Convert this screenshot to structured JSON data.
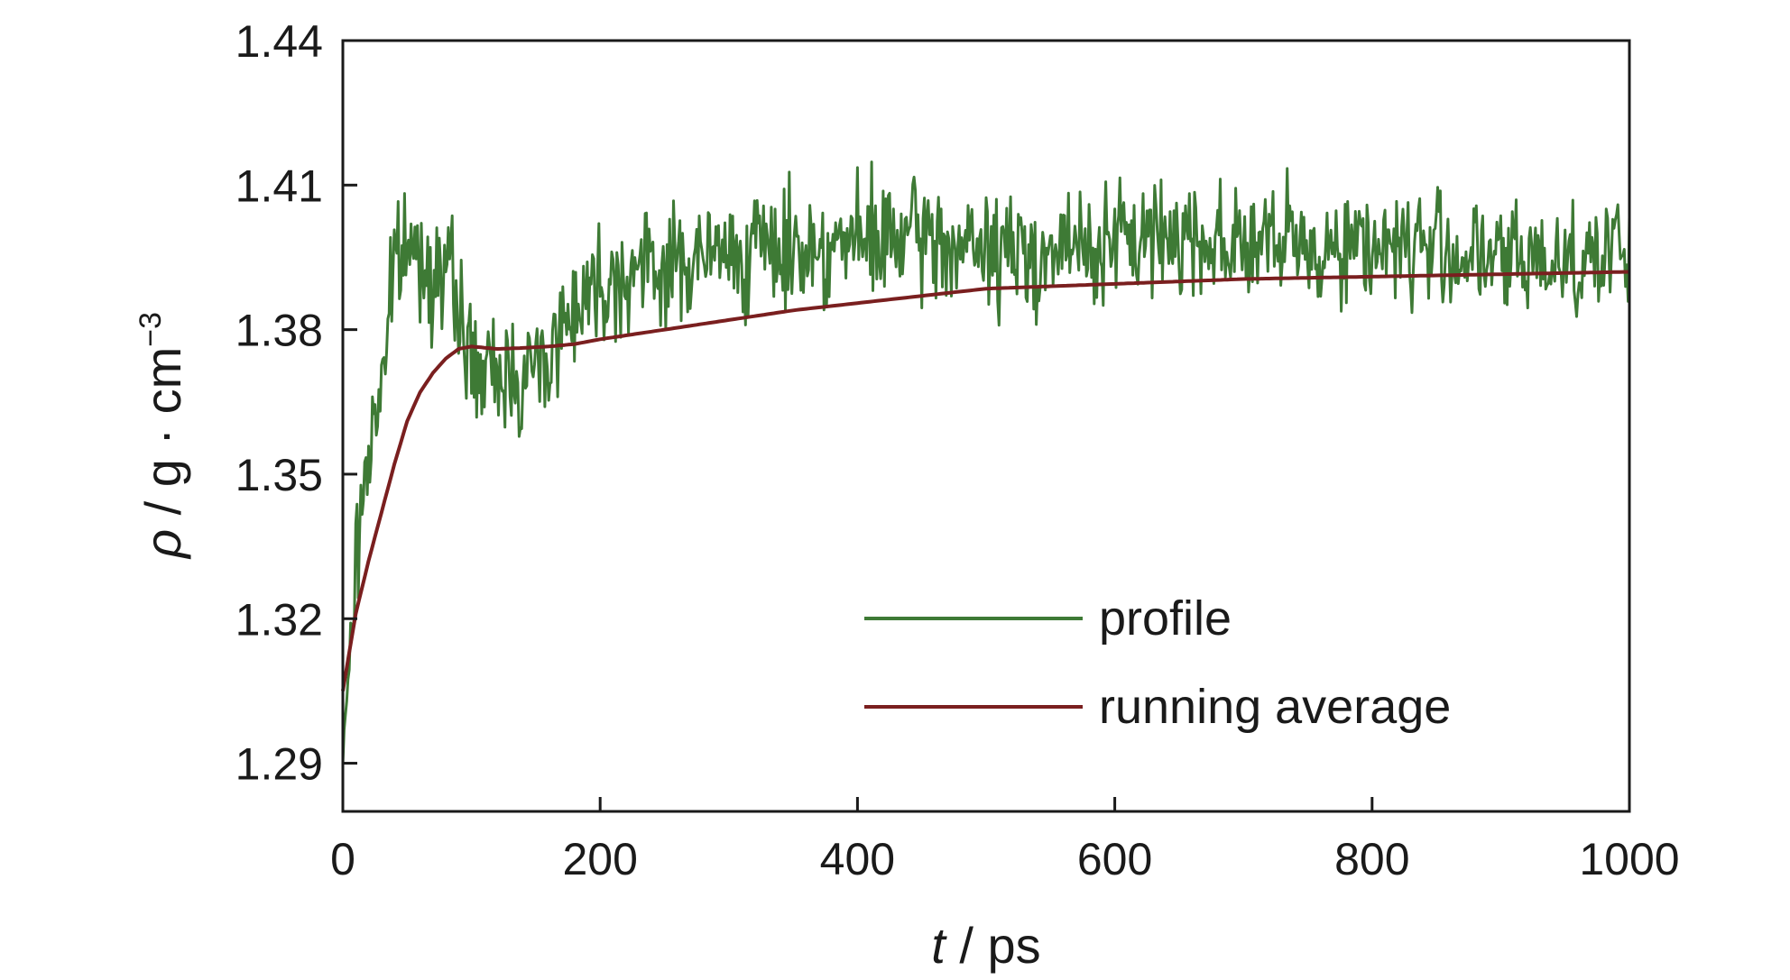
{
  "chart_data": {
    "type": "line",
    "title": "",
    "xlabel": {
      "italic": "t",
      "rest": " / ps"
    },
    "ylabel": {
      "italic": "ρ",
      "rest": " / g · cm",
      "sup": "−3"
    },
    "xlim": [
      0,
      1000
    ],
    "ylim": [
      1.28,
      1.44
    ],
    "xticks": [
      0,
      200,
      400,
      600,
      800,
      1000
    ],
    "xtick_labels": [
      "0",
      "200",
      "400",
      "600",
      "800",
      "1000"
    ],
    "yticks": [
      1.29,
      1.32,
      1.35,
      1.38,
      1.41,
      1.44
    ],
    "ytick_labels": [
      "1.29",
      "1.32",
      "1.35",
      "1.38",
      "1.41",
      "1.44"
    ],
    "grid": false,
    "legend_position": "lower-right",
    "series": [
      {
        "name": "profile",
        "color": "#3e7a35",
        "x": [
          0,
          5,
          10,
          15,
          20,
          25,
          30,
          35,
          40,
          45,
          50,
          60,
          70,
          80,
          90,
          100,
          110,
          120,
          130,
          140,
          150,
          160,
          170,
          180,
          200,
          220,
          250,
          300,
          350,
          400,
          450,
          500,
          550,
          600,
          650,
          700,
          750,
          800,
          850,
          900,
          950,
          1000
        ],
        "y": [
          1.29,
          1.312,
          1.33,
          1.345,
          1.355,
          1.362,
          1.37,
          1.382,
          1.392,
          1.396,
          1.397,
          1.395,
          1.393,
          1.392,
          1.385,
          1.373,
          1.37,
          1.37,
          1.372,
          1.37,
          1.372,
          1.375,
          1.38,
          1.386,
          1.39,
          1.392,
          1.393,
          1.396,
          1.397,
          1.398,
          1.399,
          1.396,
          1.396,
          1.398,
          1.4,
          1.398,
          1.397,
          1.398,
          1.397,
          1.394,
          1.395,
          1.396
        ],
        "noise": 0.006
      },
      {
        "name": "running average",
        "color": "#7a1f1f",
        "x": [
          0,
          5,
          10,
          20,
          30,
          40,
          50,
          60,
          70,
          80,
          90,
          100,
          120,
          140,
          160,
          180,
          200,
          250,
          300,
          350,
          400,
          450,
          500,
          600,
          700,
          800,
          900,
          1000
        ],
        "y": [
          1.305,
          1.313,
          1.321,
          1.332,
          1.342,
          1.352,
          1.361,
          1.367,
          1.371,
          1.374,
          1.376,
          1.3765,
          1.376,
          1.3762,
          1.3765,
          1.377,
          1.378,
          1.38,
          1.382,
          1.384,
          1.3855,
          1.387,
          1.3885,
          1.3895,
          1.3905,
          1.391,
          1.3915,
          1.392
        ]
      }
    ]
  }
}
